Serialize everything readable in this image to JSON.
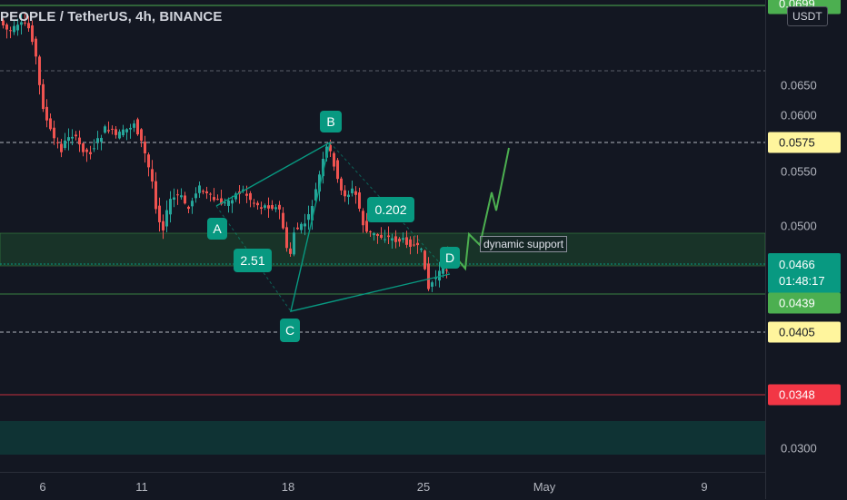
{
  "header": {
    "symbol_title": "PEOPLE / TetherUS, 4h, BINANCE",
    "currency": "USDT"
  },
  "price_axis": {
    "ticks": [
      "0.0650",
      "0.0600",
      "0.0550",
      "0.0500",
      "0.0300"
    ],
    "top_partial": "0.0699",
    "tags": {
      "p0575": "0.0575",
      "current": "0.0466",
      "countdown": "01:48:17",
      "p0439": "0.0439",
      "p0405": "0.0405",
      "p0348": "0.0348"
    }
  },
  "time_axis": {
    "labels": [
      "6",
      "11",
      "18",
      "25",
      "May",
      "9"
    ]
  },
  "pattern": {
    "point_a": "A",
    "point_b": "B",
    "point_c": "C",
    "point_d": "D",
    "ratio_xb": "2.51",
    "ratio_bc": "0.202",
    "note": "dynamic support"
  },
  "colors": {
    "background": "#131722",
    "up_candle": "#26a69a",
    "down_candle": "#ef5350",
    "pattern_teal": "#089981",
    "projection_green": "#4caf50",
    "zone_green": "#1d4a2e",
    "zone_teal": "#0f3b3a",
    "tag_yellow": "#fff59d",
    "tag_red": "#f23645"
  },
  "chart_data": {
    "type": "candlestick",
    "symbol": "PEOPLE / TetherUS",
    "interval": "4h",
    "exchange": "BINANCE",
    "price_range": [
      0.029,
      0.07
    ],
    "price_ticks": [
      0.03,
      0.05,
      0.055,
      0.06,
      0.065
    ],
    "x_labels": [
      "6",
      "11",
      "18",
      "25",
      "May",
      "9"
    ],
    "current_price": 0.0466,
    "horizontal_levels": [
      0.0699,
      0.0575,
      0.0439,
      0.0405,
      0.0348
    ],
    "zones": [
      {
        "from": 0.0467,
        "to": 0.0492
      },
      {
        "from": 0.03,
        "to": 0.0322
      }
    ],
    "harmonic_points": {
      "A": 0.0513,
      "B": 0.0575,
      "C": 0.042,
      "D": 0.046
    }
  }
}
